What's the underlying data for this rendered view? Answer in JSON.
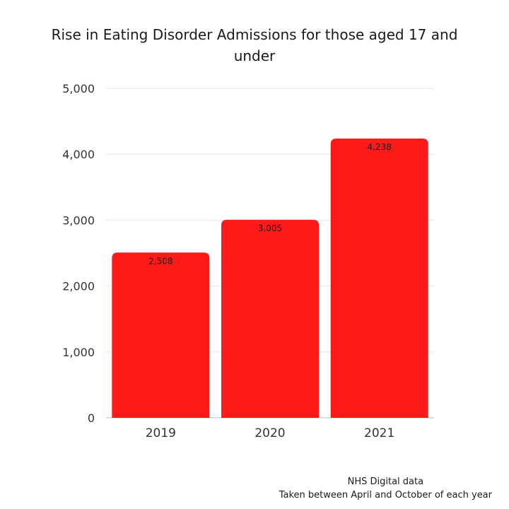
{
  "chart_data": {
    "type": "bar",
    "title": "Rise in Eating Disorder Admissions for those aged 17 and under",
    "xlabel": "",
    "ylabel": "",
    "categories": [
      "2019",
      "2020",
      "2021"
    ],
    "values": [
      2508,
      3005,
      4238
    ],
    "data_labels": [
      "2,508",
      "3,005",
      "4,238"
    ],
    "ylim": [
      0,
      5000
    ],
    "yticks": [
      0,
      1000,
      2000,
      3000,
      4000,
      5000
    ],
    "ytick_labels": [
      "0",
      "1,000",
      "2,000",
      "3,000",
      "4,000",
      "5,000"
    ],
    "grid": true,
    "legend": false,
    "bar_color": "#ff1a1a",
    "grid_color": "#e6e6e6"
  },
  "footnote": {
    "source": "NHS Digital data",
    "note": "Taken between April and October of each year"
  }
}
